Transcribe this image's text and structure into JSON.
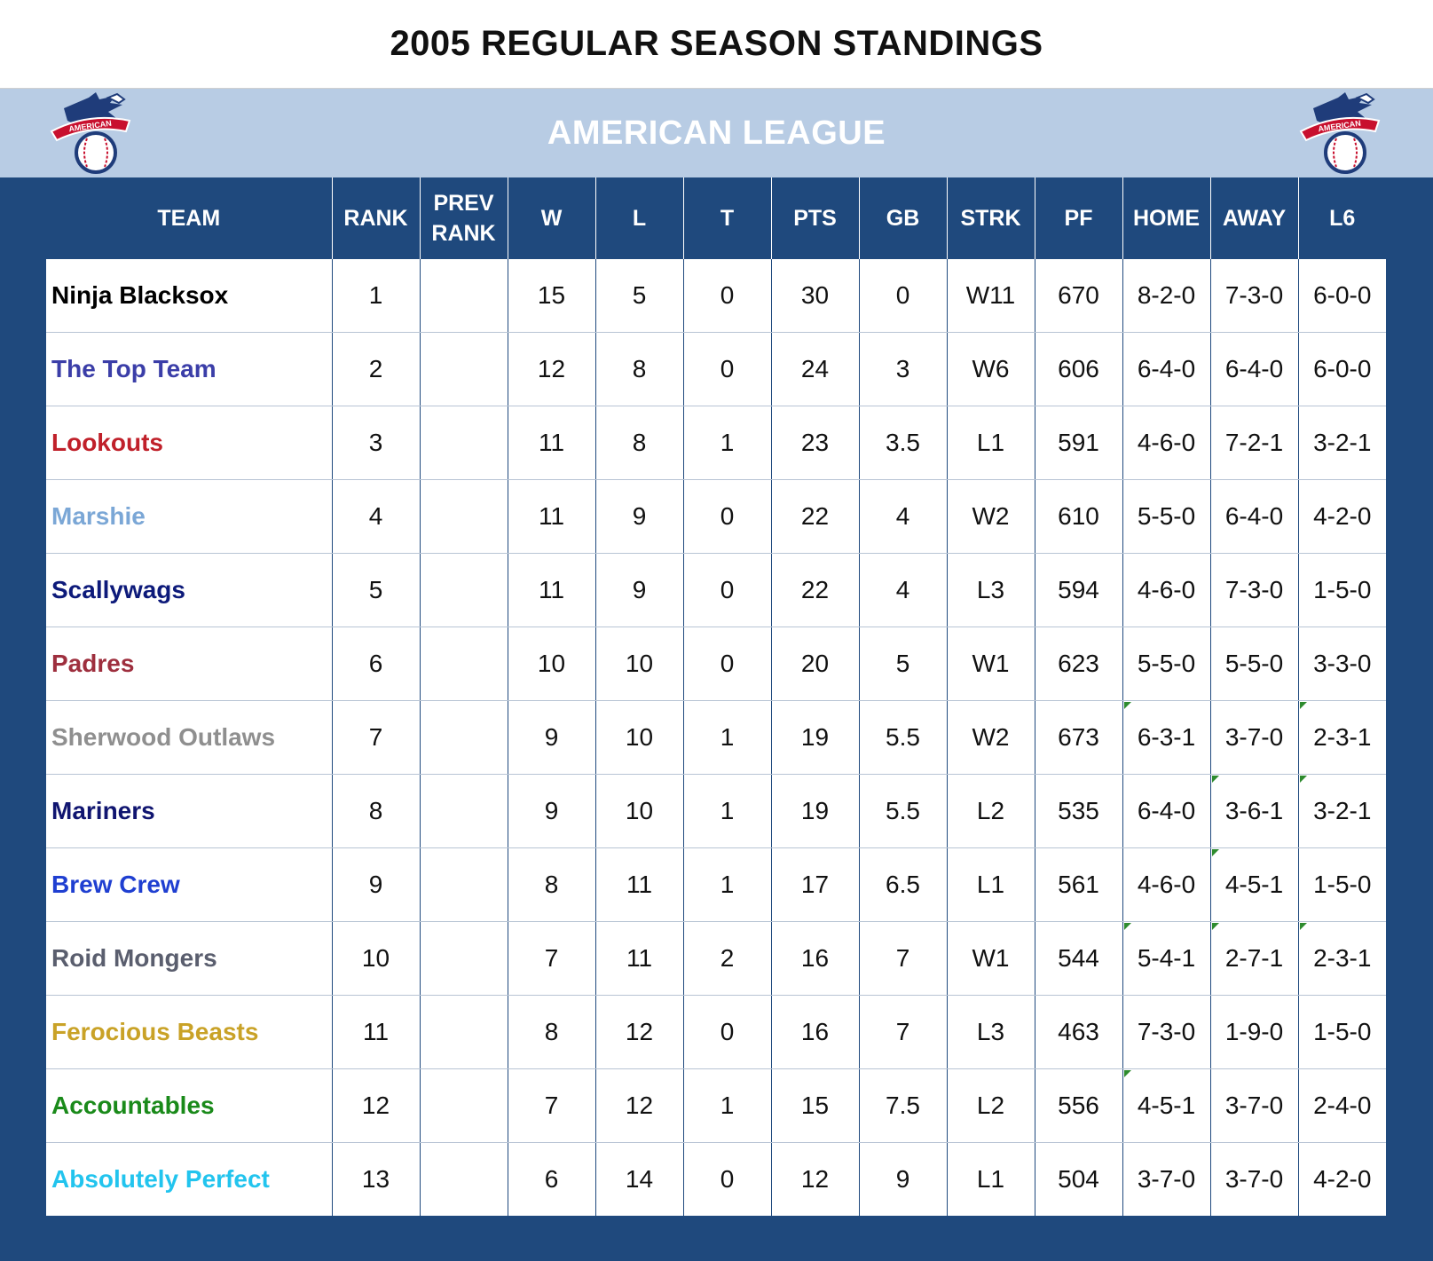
{
  "title": "2005 REGULAR SEASON STANDINGS",
  "league": "AMERICAN LEAGUE",
  "logo_text": "AMERICAN",
  "columns": [
    "TEAM",
    "RANK",
    "PREV RANK",
    "W",
    "L",
    "T",
    "PTS",
    "GB",
    "STRK",
    "PF",
    "HOME",
    "AWAY",
    "L6"
  ],
  "colors": {
    "frame": "#1f497d",
    "league_bar": "#b8cce4"
  },
  "rows": [
    {
      "team": "Ninja Blacksox",
      "color": "#000000",
      "rank": "1",
      "prev_rank": "",
      "w": "15",
      "l": "5",
      "t": "0",
      "pts": "30",
      "gb": "0",
      "strk": "W11",
      "pf": "670",
      "home": "8-2-0",
      "away": "7-3-0",
      "l6": "6-0-0"
    },
    {
      "team": "The Top Team",
      "color": "#3b3ea8",
      "rank": "2",
      "prev_rank": "",
      "w": "12",
      "l": "8",
      "t": "0",
      "pts": "24",
      "gb": "3",
      "strk": "W6",
      "pf": "606",
      "home": "6-4-0",
      "away": "6-4-0",
      "l6": "6-0-0"
    },
    {
      "team": "Lookouts",
      "color": "#c0202a",
      "rank": "3",
      "prev_rank": "",
      "w": "11",
      "l": "8",
      "t": "1",
      "pts": "23",
      "gb": "3.5",
      "strk": "L1",
      "pf": "591",
      "home": "4-6-0",
      "away": "7-2-1",
      "l6": "3-2-1"
    },
    {
      "team": "Marshie",
      "color": "#7ba7d6",
      "rank": "4",
      "prev_rank": "",
      "w": "11",
      "l": "9",
      "t": "0",
      "pts": "22",
      "gb": "4",
      "strk": "W2",
      "pf": "610",
      "home": "5-5-0",
      "away": "6-4-0",
      "l6": "4-2-0"
    },
    {
      "team": "Scallywags",
      "color": "#0d1a7a",
      "rank": "5",
      "prev_rank": "",
      "w": "11",
      "l": "9",
      "t": "0",
      "pts": "22",
      "gb": "4",
      "strk": "L3",
      "pf": "594",
      "home": "4-6-0",
      "away": "7-3-0",
      "l6": "1-5-0"
    },
    {
      "team": "Padres",
      "color": "#9e2f3e",
      "rank": "6",
      "prev_rank": "",
      "w": "10",
      "l": "10",
      "t": "0",
      "pts": "20",
      "gb": "5",
      "strk": "W1",
      "pf": "623",
      "home": "5-5-0",
      "away": "5-5-0",
      "l6": "3-3-0"
    },
    {
      "team": "Sherwood Outlaws",
      "color": "#8f8f8f",
      "rank": "7",
      "prev_rank": "",
      "w": "9",
      "l": "10",
      "t": "1",
      "pts": "19",
      "gb": "5.5",
      "strk": "W2",
      "pf": "673",
      "home": "6-3-1",
      "away": "3-7-0",
      "l6": "2-3-1"
    },
    {
      "team": "Mariners",
      "color": "#101570",
      "rank": "8",
      "prev_rank": "",
      "w": "9",
      "l": "10",
      "t": "1",
      "pts": "19",
      "gb": "5.5",
      "strk": "L2",
      "pf": "535",
      "home": "6-4-0",
      "away": "3-6-1",
      "l6": "3-2-1"
    },
    {
      "team": "Brew Crew",
      "color": "#1f3fd1",
      "rank": "9",
      "prev_rank": "",
      "w": "8",
      "l": "11",
      "t": "1",
      "pts": "17",
      "gb": "6.5",
      "strk": "L1",
      "pf": "561",
      "home": "4-6-0",
      "away": "4-5-1",
      "l6": "1-5-0"
    },
    {
      "team": "Roid Mongers",
      "color": "#5a5e6e",
      "rank": "10",
      "prev_rank": "",
      "w": "7",
      "l": "11",
      "t": "2",
      "pts": "16",
      "gb": "7",
      "strk": "W1",
      "pf": "544",
      "home": "5-4-1",
      "away": "2-7-1",
      "l6": "2-3-1"
    },
    {
      "team": "Ferocious Beasts",
      "color": "#c9a227",
      "rank": "11",
      "prev_rank": "",
      "w": "8",
      "l": "12",
      "t": "0",
      "pts": "16",
      "gb": "7",
      "strk": "L3",
      "pf": "463",
      "home": "7-3-0",
      "away": "1-9-0",
      "l6": "1-5-0"
    },
    {
      "team": "Accountables",
      "color": "#1a8a1a",
      "rank": "12",
      "prev_rank": "",
      "w": "7",
      "l": "12",
      "t": "1",
      "pts": "15",
      "gb": "7.5",
      "strk": "L2",
      "pf": "556",
      "home": "4-5-1",
      "away": "3-7-0",
      "l6": "2-4-0"
    },
    {
      "team": "Absolutely Perfect",
      "color": "#22c4ee",
      "rank": "13",
      "prev_rank": "",
      "w": "6",
      "l": "14",
      "t": "0",
      "pts": "12",
      "gb": "9",
      "strk": "L1",
      "pf": "504",
      "home": "3-7-0",
      "away": "3-7-0",
      "l6": "4-2-0"
    }
  ]
}
